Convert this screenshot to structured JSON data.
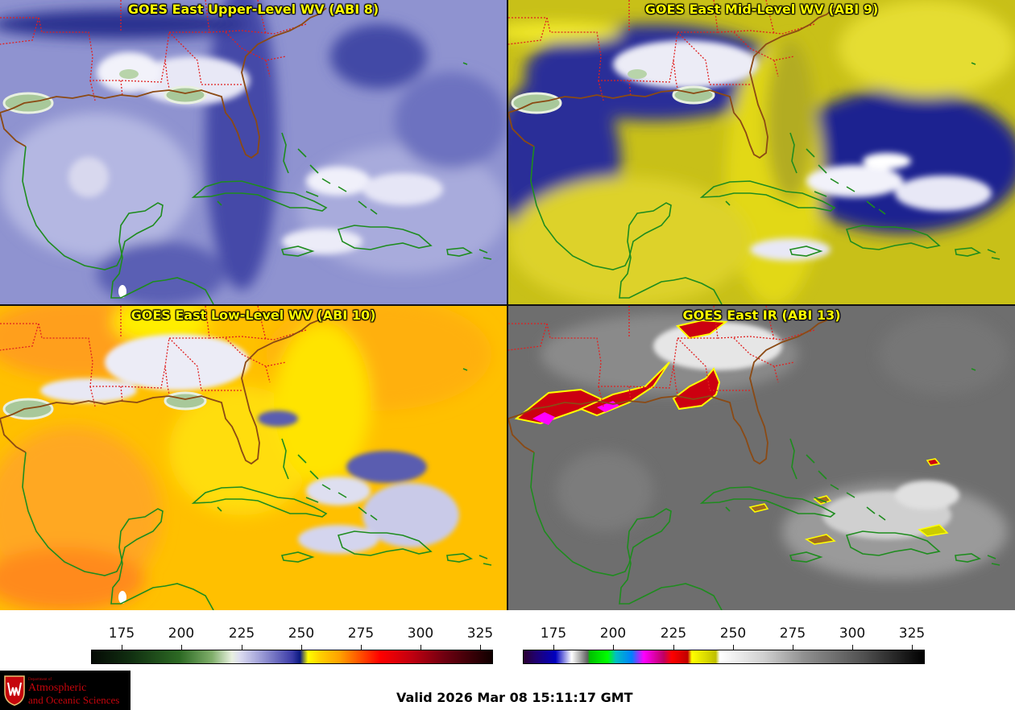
{
  "panels": {
    "upper": {
      "title": "GOES East Upper-Level WV (ABI 8)"
    },
    "mid": {
      "title": "GOES East Mid-Level WV (ABI 9)"
    },
    "low": {
      "title": "GOES East Low-Level WV (ABI 10)"
    },
    "ir": {
      "title": "GOES East IR (ABI 13)"
    }
  },
  "colorbars": {
    "wv": {
      "ticks": [
        "175",
        "200",
        "225",
        "250",
        "275",
        "300",
        "325"
      ]
    },
    "ir": {
      "ticks": [
        "175",
        "200",
        "225",
        "250",
        "275",
        "300",
        "325"
      ]
    }
  },
  "logo": {
    "dept": "Department of",
    "line1": "Atmospheric",
    "line2": "and Oceanic Sciences"
  },
  "valid_time": "Valid 2026 Mar 08 15:11:17 GMT",
  "colors": {
    "title_text": "#ffff00",
    "coastline": "#1e8c1e",
    "us_coastline": "#8b4a14",
    "state_borders": "#e02020",
    "logo_red": "#c5050c"
  }
}
